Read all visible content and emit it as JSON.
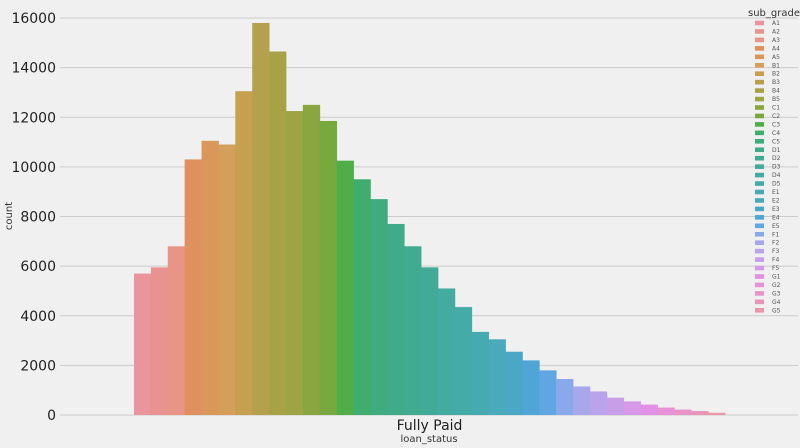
{
  "chart_data": {
    "type": "bar",
    "title": "",
    "xlabel": "loan_status",
    "ylabel": "count",
    "categories": [
      "Fully Paid"
    ],
    "ylim": [
      0,
      16000
    ],
    "yticks": [
      0,
      2000,
      4000,
      6000,
      8000,
      10000,
      12000,
      14000,
      16000
    ],
    "grid": true,
    "legend": {
      "title": "sub_grade",
      "position": "top-right"
    },
    "series": [
      {
        "name": "A1",
        "color": "#ea949b",
        "values": [
          5700
        ]
      },
      {
        "name": "A2",
        "color": "#e99391",
        "values": [
          5950
        ]
      },
      {
        "name": "A3",
        "color": "#e89486",
        "values": [
          6800
        ]
      },
      {
        "name": "A4",
        "color": "#e0905f",
        "values": [
          10300
        ]
      },
      {
        "name": "A5",
        "color": "#d9975a",
        "values": [
          11050
        ]
      },
      {
        "name": "B1",
        "color": "#d39f5a",
        "values": [
          10900
        ]
      },
      {
        "name": "B2",
        "color": "#c4a04f",
        "values": [
          13050
        ]
      },
      {
        "name": "B3",
        "color": "#b5a14d",
        "values": [
          15800
        ]
      },
      {
        "name": "B4",
        "color": "#a8a247",
        "values": [
          14650
        ]
      },
      {
        "name": "B5",
        "color": "#9ca444",
        "values": [
          12250
        ]
      },
      {
        "name": "C1",
        "color": "#8aa641",
        "values": [
          12500
        ]
      },
      {
        "name": "C2",
        "color": "#77a93f",
        "values": [
          11850
        ]
      },
      {
        "name": "C3",
        "color": "#4fae47",
        "values": [
          10250
        ]
      },
      {
        "name": "C4",
        "color": "#3ead6e",
        "values": [
          9500
        ]
      },
      {
        "name": "C5",
        "color": "#40ac7e",
        "values": [
          8700
        ]
      },
      {
        "name": "D1",
        "color": "#40ab88",
        "values": [
          7700
        ]
      },
      {
        "name": "D2",
        "color": "#41ab90",
        "values": [
          6800
        ]
      },
      {
        "name": "D3",
        "color": "#42ab97",
        "values": [
          5950
        ]
      },
      {
        "name": "D4",
        "color": "#43aba0",
        "values": [
          5100
        ]
      },
      {
        "name": "D5",
        "color": "#44aba8",
        "values": [
          4350
        ]
      },
      {
        "name": "E1",
        "color": "#46aab1",
        "values": [
          3350
        ]
      },
      {
        "name": "E2",
        "color": "#48aabb",
        "values": [
          3050
        ]
      },
      {
        "name": "E3",
        "color": "#4aa8c6",
        "values": [
          2550
        ]
      },
      {
        "name": "E4",
        "color": "#4fa5d6",
        "values": [
          2200
        ]
      },
      {
        "name": "E5",
        "color": "#5fa6e3",
        "values": [
          1800
        ]
      },
      {
        "name": "F1",
        "color": "#8aa9ea",
        "values": [
          1450
        ]
      },
      {
        "name": "F2",
        "color": "#a6a8eb",
        "values": [
          1150
        ]
      },
      {
        "name": "F3",
        "color": "#b9a3ea",
        "values": [
          950
        ]
      },
      {
        "name": "F4",
        "color": "#c89ee9",
        "values": [
          700
        ]
      },
      {
        "name": "F5",
        "color": "#d899e8",
        "values": [
          550
        ]
      },
      {
        "name": "G1",
        "color": "#e190e6",
        "values": [
          420
        ]
      },
      {
        "name": "G2",
        "color": "#e692d5",
        "values": [
          300
        ]
      },
      {
        "name": "G3",
        "color": "#e894c7",
        "values": [
          220
        ]
      },
      {
        "name": "G4",
        "color": "#e995b6",
        "values": [
          160
        ]
      },
      {
        "name": "G5",
        "color": "#ea97a8",
        "values": [
          90
        ]
      }
    ]
  }
}
